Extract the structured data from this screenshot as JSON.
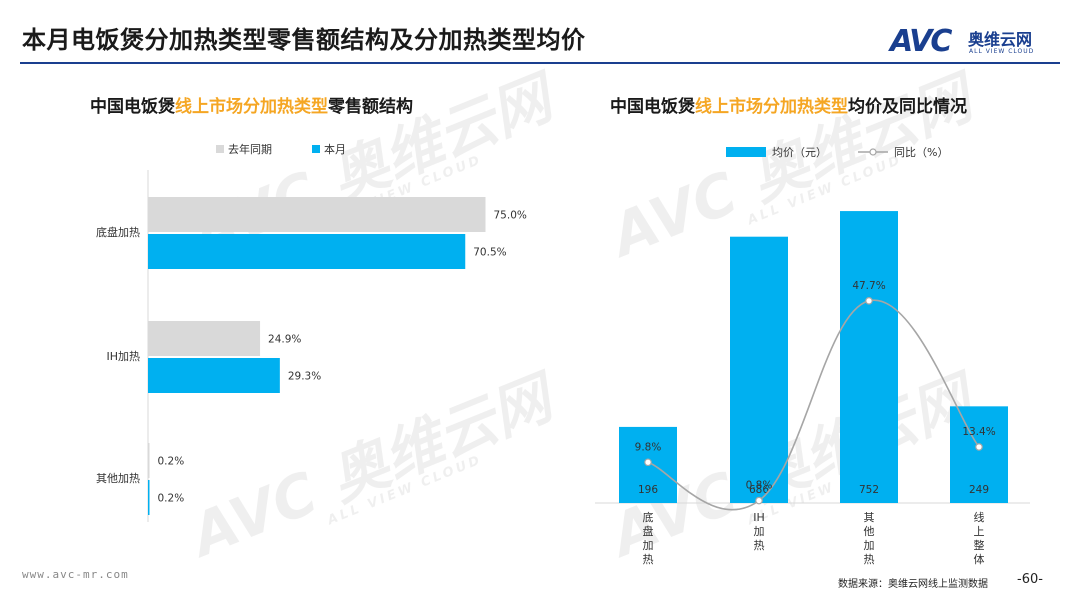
{
  "page": {
    "title": "本月电饭煲分加热类型零售额结构及分加热类型均价",
    "logo_letters": "AVC",
    "logo_cn": "奥维云网",
    "logo_en": "ALL VIEW CLOUD",
    "footer_url": "www.avc-mr.com",
    "footer_source": "数据来源：奥维云网线上监测数据",
    "page_number": "-60-",
    "watermark_letters": "AVC",
    "watermark_cn": "奥维云网",
    "watermark_en": "ALL VIEW CLOUD",
    "colors": {
      "title_rule": "#1a3f8f",
      "highlight": "#f5a623",
      "blue": "#00b0f0",
      "gray": "#d9d9d9",
      "line": "#a6a6a6"
    }
  },
  "chart_data": [
    {
      "type": "bar",
      "orientation": "horizontal",
      "title_parts": [
        "中国电饭煲",
        "线上市场分加热类型",
        "零售额结构"
      ],
      "categories": [
        "底盘加热",
        "IH加热",
        "其他加热"
      ],
      "series": [
        {
          "name": "去年同期",
          "values": [
            75.0,
            24.9,
            0.2
          ],
          "labels": [
            "75.0%",
            "24.9%",
            "0.2%"
          ],
          "color": "#d9d9d9"
        },
        {
          "name": "本月",
          "values": [
            70.5,
            29.3,
            0.2
          ],
          "labels": [
            "70.5%",
            "29.3%",
            "0.2%"
          ],
          "color": "#00b0f0"
        }
      ],
      "unit": "%",
      "legend_position": "top",
      "grid": false
    },
    {
      "type": "bar",
      "title_parts": [
        "中国电饭煲",
        "线上市场分加热类型",
        "均价及同比情况"
      ],
      "categories": [
        "底盘加热",
        "IH加热",
        "其他加热",
        "线上整体"
      ],
      "category_labels": [
        "底\n盘\n加\n热",
        "IH\n加\n热",
        "其\n他\n加\n热",
        "线\n上\n整\n体"
      ],
      "series": [
        {
          "name": "均价（元）",
          "type": "bar",
          "axis": "left",
          "values": [
            196,
            686,
            752,
            249
          ],
          "labels": [
            "196",
            "686",
            "752",
            "249"
          ],
          "color": "#00b0f0"
        },
        {
          "name": "同比（%）",
          "type": "line",
          "axis": "right",
          "values": [
            9.8,
            0.8,
            47.7,
            13.4
          ],
          "labels": [
            "9.8%",
            "0.8%",
            "47.7%",
            "13.4%"
          ],
          "color": "#a6a6a6"
        }
      ],
      "legend_position": "top",
      "grid": false
    }
  ]
}
